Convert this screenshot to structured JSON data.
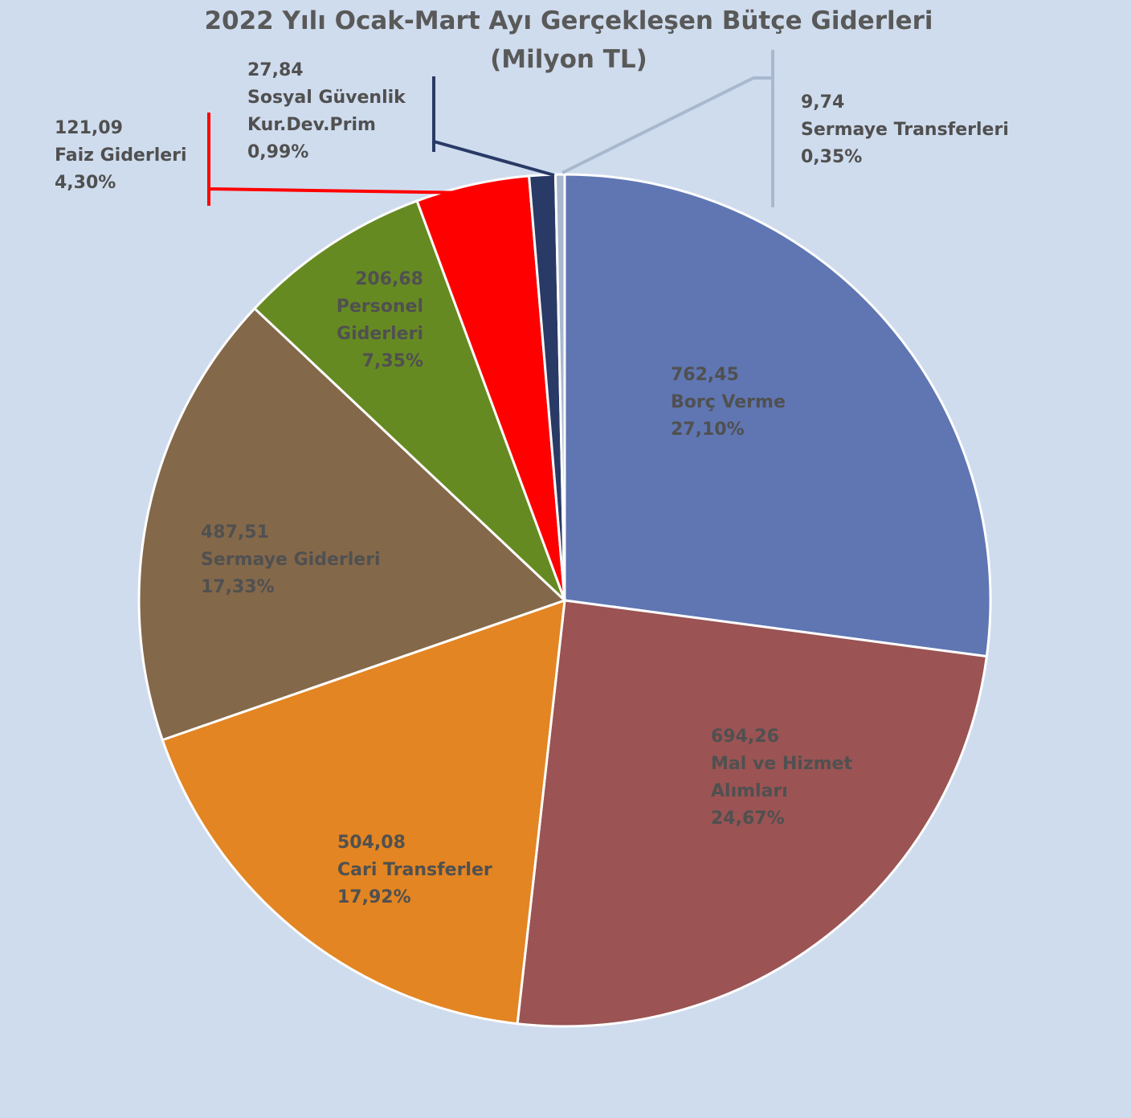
{
  "chart_data": {
    "type": "pie",
    "title": "2022 Yılı Ocak-Mart Ayı Gerçekleşen Bütçe Giderleri",
    "subtitle": "(Milyon TL)",
    "categories": [
      "Borç Verme",
      "Mal ve Hizmet Alımları",
      "Cari Transferler",
      "Sermaye Giderleri",
      "Personel Giderleri",
      "Faiz Giderleri",
      "Sosyal Güvenlik Kur.Dev.Prim",
      "Sermaye Transferleri"
    ],
    "values": [
      762.45,
      694.26,
      504.08,
      487.51,
      206.68,
      121.09,
      27.84,
      9.74
    ],
    "value_labels": [
      "762,45",
      "694,26",
      "504,08",
      "487,51",
      "206,68",
      "121,09",
      "27,84",
      "9,74"
    ],
    "percents": [
      27.1,
      24.67,
      17.92,
      17.33,
      7.35,
      4.3,
      0.99,
      0.35
    ],
    "percent_labels": [
      "27,10%",
      "24,67%",
      "17,92%",
      "17,33%",
      "7,35%",
      "4,30%",
      "0,99%",
      "0,35%"
    ],
    "colors": [
      "#5f76b3",
      "#9b5353",
      "#e38522",
      "#84684a",
      "#668a22",
      "#ff0000",
      "#2a3a66",
      "#a8b8cf"
    ]
  }
}
